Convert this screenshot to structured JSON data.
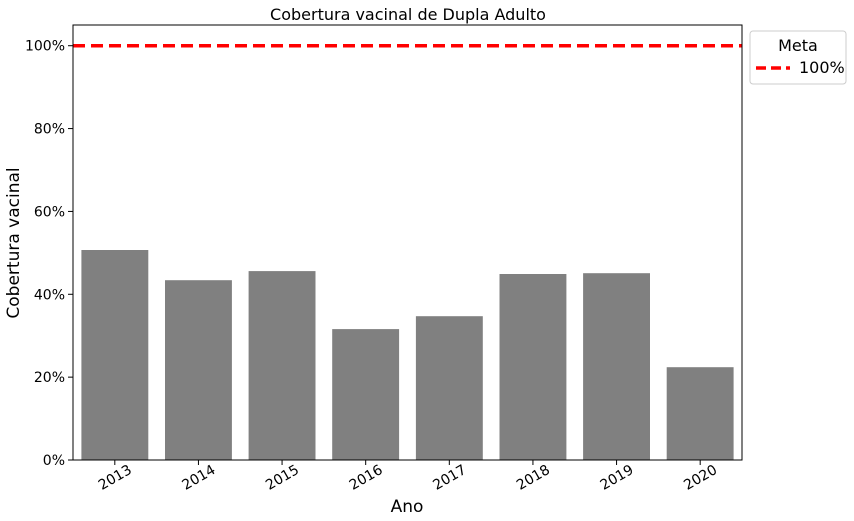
{
  "chart_data": {
    "type": "bar",
    "title": "Cobertura vacinal de Dupla Adulto",
    "xlabel": "Ano",
    "ylabel": "Cobertura vacinal",
    "categories": [
      "2013",
      "2014",
      "2015",
      "2016",
      "2017",
      "2018",
      "2019",
      "2020"
    ],
    "values": [
      50.7,
      43.4,
      45.6,
      31.6,
      34.7,
      44.9,
      45.1,
      22.4
    ],
    "ylim": [
      0,
      105
    ],
    "yticks": [
      0,
      20,
      40,
      60,
      80,
      100
    ],
    "ytick_labels": [
      "0%",
      "20%",
      "40%",
      "60%",
      "80%",
      "100%"
    ],
    "bar_color": "#808080",
    "reference_line": {
      "value": 100,
      "color": "#ff0000",
      "style": "dashed"
    },
    "legend": {
      "title": "Meta",
      "entries": [
        "100%"
      ],
      "placement": "outside-top-right"
    },
    "grid": false
  }
}
